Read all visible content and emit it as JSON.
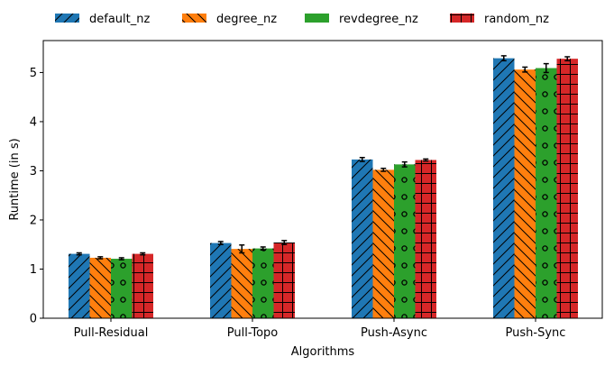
{
  "chart_data": {
    "type": "bar",
    "title": "",
    "xlabel": "Algorithms",
    "ylabel": "Runtime (in s)",
    "ylim": [
      0,
      5.65
    ],
    "yticks": [
      0,
      1,
      2,
      3,
      4,
      5
    ],
    "categories": [
      "Pull-Residual",
      "Pull-Topo",
      "Push-Async",
      "Push-Sync"
    ],
    "legend_position": "top",
    "grid": false,
    "series": [
      {
        "name": "default_nz",
        "color": "#1f77b4",
        "hatch": "diagonal-forward",
        "values": [
          1.31,
          1.53,
          3.23,
          5.29
        ],
        "errors": [
          0.02,
          0.03,
          0.04,
          0.05
        ]
      },
      {
        "name": "degree_nz",
        "color": "#ff7f0e",
        "hatch": "diagonal-back",
        "values": [
          1.23,
          1.41,
          3.02,
          5.06
        ],
        "errors": [
          0.02,
          0.08,
          0.03,
          0.05
        ]
      },
      {
        "name": "revdegree_nz",
        "color": "#2ca02c",
        "hatch": "circles",
        "values": [
          1.21,
          1.42,
          3.13,
          5.09
        ],
        "errors": [
          0.02,
          0.03,
          0.05,
          0.09
        ]
      },
      {
        "name": "random_nz",
        "color": "#d62728",
        "hatch": "grid",
        "values": [
          1.31,
          1.54,
          3.22,
          5.28
        ],
        "errors": [
          0.02,
          0.04,
          0.02,
          0.04
        ]
      }
    ]
  }
}
